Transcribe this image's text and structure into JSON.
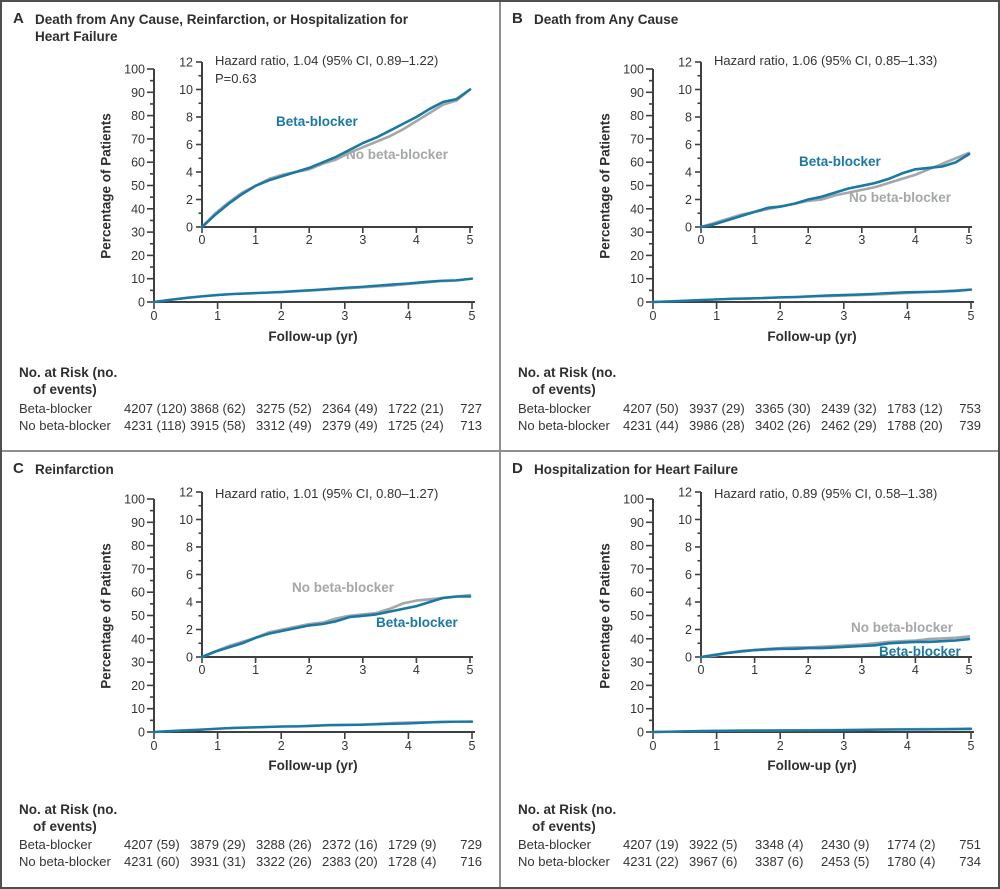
{
  "figure": {
    "ylabel": "Percentage of Patients",
    "xlabel": "Follow-up (yr)",
    "risk_header_line1": "No. at Risk (no.",
    "risk_header_line2": "of events)",
    "colors": {
      "beta_blocker": "#1a78a4",
      "no_beta_blocker": "#a4a7a9",
      "axis": "#3f3f3f",
      "text": "#353535",
      "border": "#4f4f4f",
      "divider": "#8f8f8f",
      "background": "#ffffff"
    }
  },
  "panels": [
    {
      "letter": "A",
      "title": "Death from Any Cause, Reinfarction, or Hospitalization for\nHeart Failure",
      "hazard_line1": "Hazard ratio, 1.04 (95% CI, 0.89–1.22)",
      "hazard_line2": "P=0.63",
      "series_labels": {
        "beta": "Beta-blocker",
        "no_beta": "No beta-blocker"
      },
      "risk": {
        "rows": [
          {
            "label": "Beta-blocker",
            "cells": [
              "4207 (120)",
              "3868 (62)",
              "3275 (52)",
              "2364 (49)",
              "1722 (21)",
              "727"
            ]
          },
          {
            "label": "No beta-blocker",
            "cells": [
              "4231 (118)",
              "3915 (58)",
              "3312 (49)",
              "2379 (49)",
              "1725 (24)",
              "713"
            ]
          }
        ]
      }
    },
    {
      "letter": "B",
      "title": "Death from Any Cause",
      "hazard_line1": "Hazard ratio, 1.06 (95% CI, 0.85–1.33)",
      "series_labels": {
        "beta": "Beta-blocker",
        "no_beta": "No beta-blocker"
      },
      "risk": {
        "rows": [
          {
            "label": "Beta-blocker",
            "cells": [
              "4207 (50)",
              "3937 (29)",
              "3365 (30)",
              "2439 (32)",
              "1783 (12)",
              "753"
            ]
          },
          {
            "label": "No beta-blocker",
            "cells": [
              "4231 (44)",
              "3986 (28)",
              "3402 (26)",
              "2462 (29)",
              "1788 (20)",
              "739"
            ]
          }
        ]
      }
    },
    {
      "letter": "C",
      "title": "Reinfarction",
      "hazard_line1": "Hazard ratio, 1.01 (95% CI, 0.80–1.27)",
      "series_labels": {
        "beta": "Beta-blocker",
        "no_beta": "No beta-blocker"
      },
      "risk": {
        "rows": [
          {
            "label": "Beta-blocker",
            "cells": [
              "4207 (59)",
              "3879 (29)",
              "3288 (26)",
              "2372 (16)",
              "1729 (9)",
              "729"
            ]
          },
          {
            "label": "No beta-blocker",
            "cells": [
              "4231 (60)",
              "3931 (31)",
              "3322 (26)",
              "2383 (20)",
              "1728 (4)",
              "716"
            ]
          }
        ]
      }
    },
    {
      "letter": "D",
      "title": "Hospitalization for Heart Failure",
      "hazard_line1": "Hazard ratio, 0.89 (95% CI, 0.58–1.38)",
      "series_labels": {
        "beta": "Beta-blocker",
        "no_beta": "No beta-blocker"
      },
      "risk": {
        "rows": [
          {
            "label": "Beta-blocker",
            "cells": [
              "4207 (19)",
              "3922 (5)",
              "3348 (4)",
              "2430 (9)",
              "1774 (2)",
              "751"
            ]
          },
          {
            "label": "No beta-blocker",
            "cells": [
              "4231 (22)",
              "3967 (6)",
              "3387 (6)",
              "2453 (5)",
              "1780 (4)",
              "734"
            ]
          }
        ]
      }
    }
  ],
  "chart_data": [
    {
      "type": "line",
      "title": "Death from Any Cause, Reinfarction, or Hospitalization for Heart Failure",
      "xlabel": "Follow-up (yr)",
      "ylabel": "Percentage of Patients",
      "annotation": [
        "Hazard ratio, 1.04 (95% CI, 0.89–1.22)",
        "P=0.63"
      ],
      "main_axis": {
        "xlim": [
          0,
          5
        ],
        "ylim": [
          0,
          100
        ],
        "xtick_step": 1,
        "ytick_step": 10,
        "yminor_step": 5
      },
      "inset_axis": {
        "xlim": [
          0,
          5
        ],
        "ylim": [
          0,
          12
        ],
        "xtick_step": 1,
        "ytick_step": 2,
        "yminor_step": 1
      },
      "x": [
        0,
        0.25,
        0.5,
        0.75,
        1,
        1.25,
        1.5,
        1.75,
        2,
        2.25,
        2.5,
        2.75,
        3,
        3.25,
        3.5,
        3.75,
        4,
        4.25,
        4.5,
        4.75,
        5
      ],
      "series": [
        {
          "name": "Beta-blocker",
          "color_key": "beta_blocker",
          "values": [
            0,
            0.9,
            1.7,
            2.4,
            3.0,
            3.4,
            3.7,
            4.0,
            4.3,
            4.7,
            5.1,
            5.6,
            6.1,
            6.5,
            7.0,
            7.5,
            8.0,
            8.6,
            9.1,
            9.3,
            10.0
          ]
        },
        {
          "name": "No beta-blocker",
          "color_key": "no_beta_blocker",
          "values": [
            0,
            1.0,
            1.8,
            2.5,
            3.0,
            3.5,
            3.8,
            4.0,
            4.2,
            4.6,
            4.9,
            5.4,
            5.8,
            6.2,
            6.6,
            7.1,
            7.7,
            8.3,
            8.9,
            9.2,
            10.0
          ]
        }
      ]
    },
    {
      "type": "line",
      "title": "Death from Any Cause",
      "xlabel": "Follow-up (yr)",
      "ylabel": "Percentage of Patients",
      "annotation": [
        "Hazard ratio, 1.06 (95% CI, 0.85–1.33)"
      ],
      "main_axis": {
        "xlim": [
          0,
          5
        ],
        "ylim": [
          0,
          100
        ],
        "xtick_step": 1,
        "ytick_step": 10,
        "yminor_step": 5
      },
      "inset_axis": {
        "xlim": [
          0,
          5
        ],
        "ylim": [
          0,
          12
        ],
        "xtick_step": 1,
        "ytick_step": 2,
        "yminor_step": 1
      },
      "x": [
        0,
        0.25,
        0.5,
        0.75,
        1,
        1.25,
        1.5,
        1.75,
        2,
        2.25,
        2.5,
        2.75,
        3,
        3.25,
        3.5,
        3.75,
        4,
        4.25,
        4.5,
        4.75,
        5
      ],
      "series": [
        {
          "name": "Beta-blocker",
          "color_key": "beta_blocker",
          "values": [
            0,
            0.2,
            0.5,
            0.8,
            1.1,
            1.4,
            1.5,
            1.7,
            2.0,
            2.2,
            2.5,
            2.8,
            3.0,
            3.2,
            3.5,
            3.9,
            4.2,
            4.3,
            4.4,
            4.7,
            5.3
          ]
        },
        {
          "name": "No beta-blocker",
          "color_key": "no_beta_blocker",
          "values": [
            0,
            0.3,
            0.6,
            0.9,
            1.1,
            1.3,
            1.5,
            1.7,
            1.9,
            2.0,
            2.3,
            2.5,
            2.7,
            2.9,
            3.2,
            3.5,
            3.8,
            4.2,
            4.6,
            5.0,
            5.4
          ]
        }
      ]
    },
    {
      "type": "line",
      "title": "Reinfarction",
      "xlabel": "Follow-up (yr)",
      "ylabel": "Percentage of Patients",
      "annotation": [
        "Hazard ratio, 1.01 (95% CI, 0.80–1.27)"
      ],
      "main_axis": {
        "xlim": [
          0,
          5
        ],
        "ylim": [
          0,
          100
        ],
        "xtick_step": 1,
        "ytick_step": 10,
        "yminor_step": 5
      },
      "inset_axis": {
        "xlim": [
          0,
          5
        ],
        "ylim": [
          0,
          12
        ],
        "xtick_step": 1,
        "ytick_step": 2,
        "yminor_step": 1
      },
      "x": [
        0,
        0.25,
        0.5,
        0.75,
        1,
        1.25,
        1.5,
        1.75,
        2,
        2.25,
        2.5,
        2.75,
        3,
        3.25,
        3.5,
        3.75,
        4,
        4.25,
        4.5,
        4.75,
        5
      ],
      "series": [
        {
          "name": "Beta-blocker",
          "color_key": "beta_blocker",
          "values": [
            0,
            0.4,
            0.7,
            1.0,
            1.4,
            1.7,
            1.9,
            2.1,
            2.3,
            2.4,
            2.6,
            2.9,
            3.0,
            3.1,
            3.3,
            3.5,
            3.7,
            4.0,
            4.3,
            4.4,
            4.4
          ]
        },
        {
          "name": "No beta-blocker",
          "color_key": "no_beta_blocker",
          "values": [
            0,
            0.4,
            0.8,
            1.1,
            1.4,
            1.8,
            2.0,
            2.2,
            2.4,
            2.5,
            2.8,
            3.0,
            3.1,
            3.2,
            3.5,
            3.9,
            4.1,
            4.2,
            4.3,
            4.4,
            4.5
          ]
        }
      ]
    },
    {
      "type": "line",
      "title": "Hospitalization for Heart Failure",
      "xlabel": "Follow-up (yr)",
      "ylabel": "Percentage of Patients",
      "annotation": [
        "Hazard ratio, 0.89 (95% CI, 0.58–1.38)"
      ],
      "main_axis": {
        "xlim": [
          0,
          5
        ],
        "ylim": [
          0,
          100
        ],
        "xtick_step": 1,
        "ytick_step": 10,
        "yminor_step": 5
      },
      "inset_axis": {
        "xlim": [
          0,
          5
        ],
        "ylim": [
          0,
          12
        ],
        "xtick_step": 1,
        "ytick_step": 2,
        "yminor_step": 1
      },
      "x": [
        0,
        0.25,
        0.5,
        0.75,
        1,
        1.25,
        1.5,
        1.75,
        2,
        2.25,
        2.5,
        2.75,
        3,
        3.25,
        3.5,
        3.75,
        4,
        4.25,
        4.5,
        4.75,
        5
      ],
      "series": [
        {
          "name": "Beta-blocker",
          "color_key": "beta_blocker",
          "values": [
            0,
            0.15,
            0.3,
            0.4,
            0.5,
            0.55,
            0.6,
            0.6,
            0.65,
            0.65,
            0.7,
            0.75,
            0.8,
            0.85,
            1.0,
            1.05,
            1.1,
            1.1,
            1.15,
            1.2,
            1.3
          ]
        },
        {
          "name": "No beta-blocker",
          "color_key": "no_beta_blocker",
          "values": [
            0,
            0.1,
            0.3,
            0.45,
            0.5,
            0.6,
            0.65,
            0.7,
            0.7,
            0.75,
            0.8,
            0.85,
            0.9,
            1.0,
            1.1,
            1.15,
            1.2,
            1.3,
            1.35,
            1.4,
            1.5
          ]
        }
      ]
    }
  ]
}
